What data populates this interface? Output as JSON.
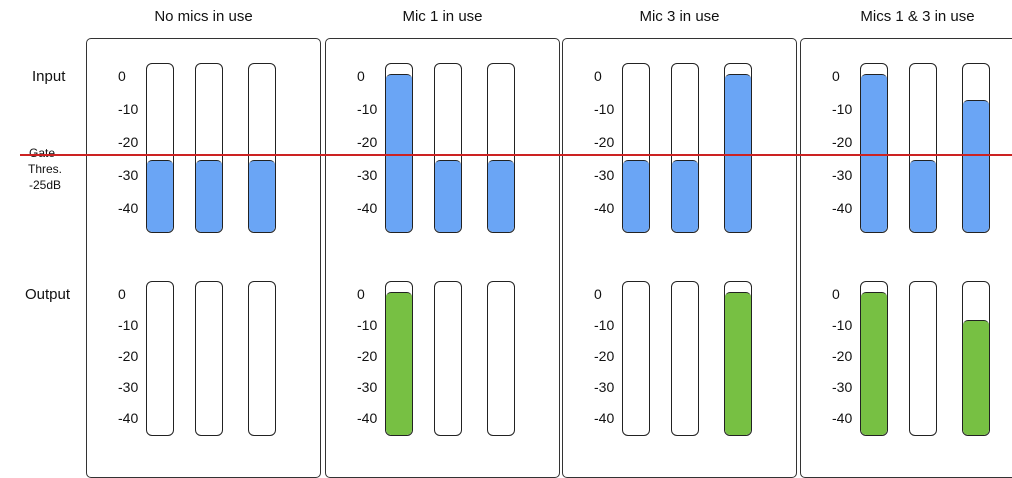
{
  "labels": {
    "input": "Input",
    "output": "Output",
    "gate_line1": "Gate",
    "gate_line2": "Thres.",
    "gate_line3": "-25dB"
  },
  "gate_threshold_db": -25,
  "scale": {
    "ticks": [
      "0",
      "-10",
      "-20",
      "-30",
      "-40"
    ]
  },
  "colors": {
    "input_fill": "#6aa5f5",
    "output_fill": "#77c043",
    "gate_line": "#cc2222"
  },
  "panels": [
    {
      "title": "No mics in use",
      "input_levels_db": [
        -30,
        -30,
        -30
      ],
      "output_levels_db": [
        null,
        null,
        null
      ]
    },
    {
      "title": "Mic 1 in use",
      "input_levels_db": [
        -3,
        -30,
        -30
      ],
      "output_levels_db": [
        -3,
        null,
        null
      ]
    },
    {
      "title": "Mic 3 in use",
      "input_levels_db": [
        -30,
        -30,
        -3
      ],
      "output_levels_db": [
        null,
        null,
        -3
      ]
    },
    {
      "title": "Mics 1 & 3 in use",
      "input_levels_db": [
        -3,
        -30,
        -11
      ],
      "output_levels_db": [
        -3,
        null,
        -13
      ]
    }
  ]
}
